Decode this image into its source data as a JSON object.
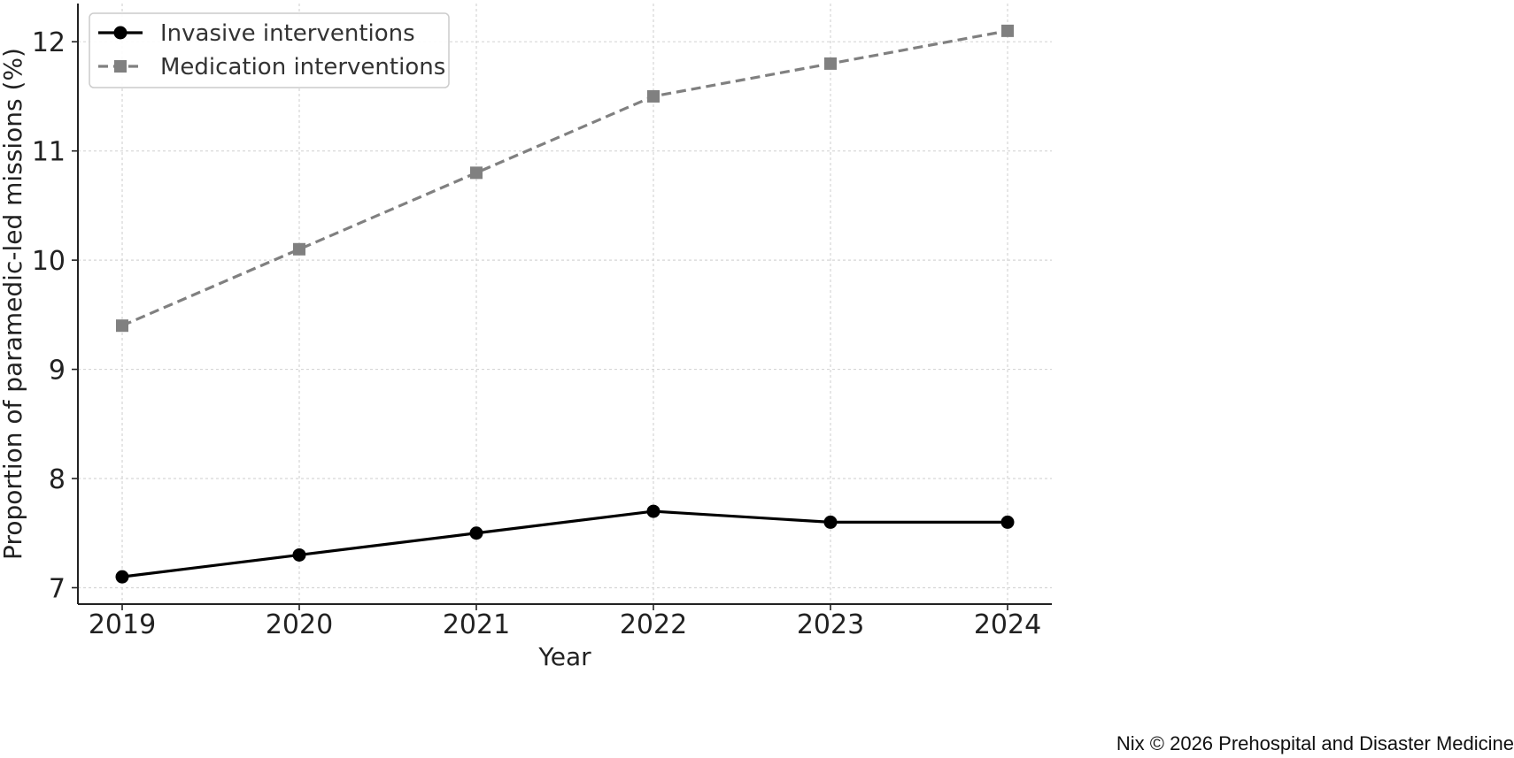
{
  "chart_data": {
    "type": "line",
    "x": [
      2019,
      2020,
      2021,
      2022,
      2023,
      2024
    ],
    "xlabel": "Year",
    "ylabel": "Proportion of paramedic-led missions (%)",
    "xlim": [
      2018.75,
      2024.25
    ],
    "ylim": [
      6.85,
      12.35
    ],
    "yticks": [
      7,
      8,
      9,
      10,
      11,
      12
    ],
    "grid": true,
    "legend_position": "top-left",
    "series": [
      {
        "name": "Invasive interventions",
        "values": [
          7.1,
          7.3,
          7.5,
          7.7,
          7.6,
          7.6
        ],
        "color": "#000000",
        "line_style": "solid",
        "marker": "circle"
      },
      {
        "name": "Medication interventions",
        "values": [
          9.4,
          10.1,
          10.8,
          11.5,
          11.8,
          12.1
        ],
        "color": "#808080",
        "line_style": "dashed",
        "marker": "square"
      }
    ]
  },
  "credit": "Nix © 2026 Prehospital and Disaster Medicine"
}
